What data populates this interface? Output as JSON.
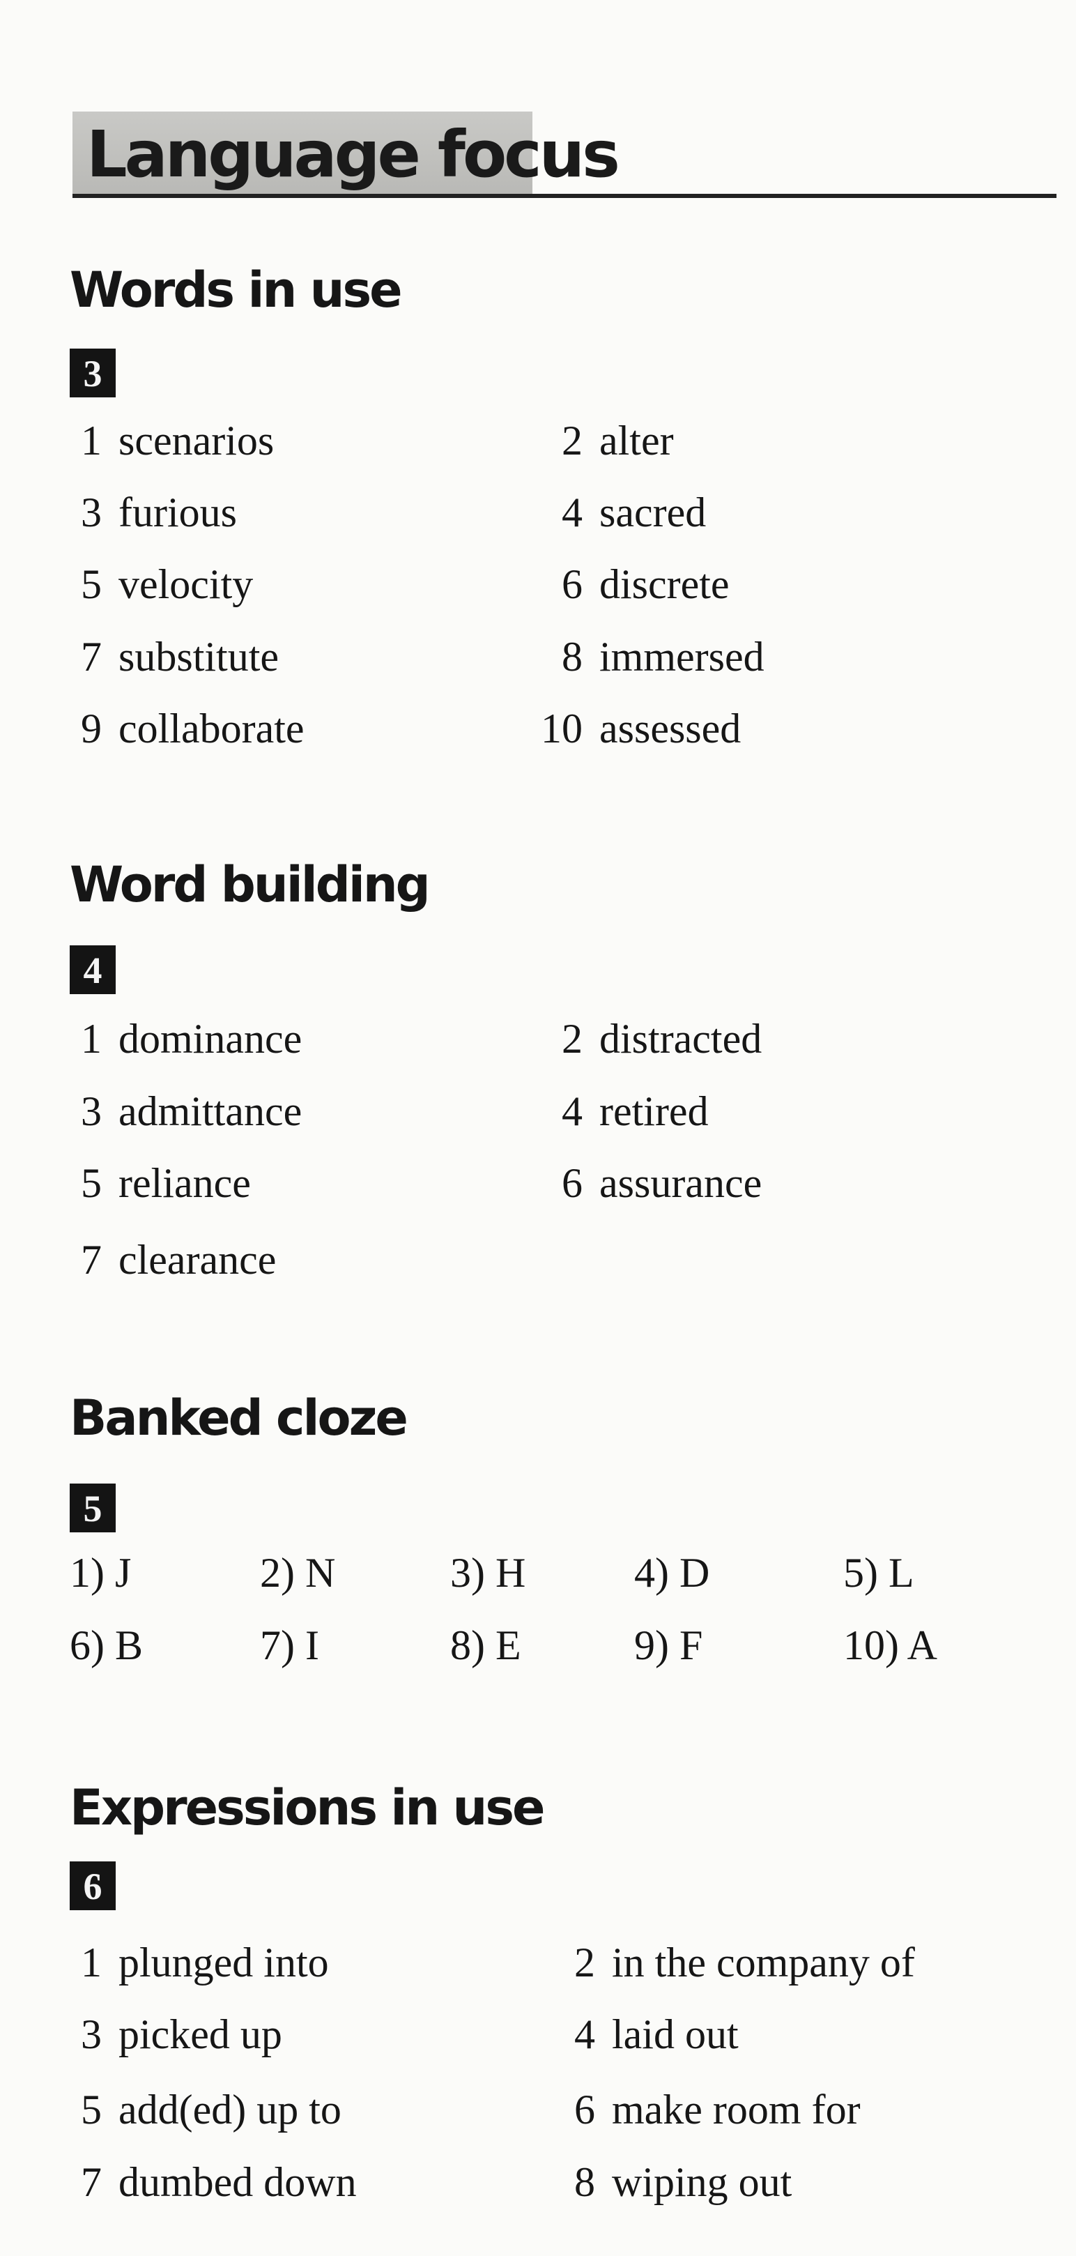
{
  "header": {
    "title": "Language focus"
  },
  "sections": [
    {
      "title": "Words in use",
      "exercise": "3",
      "items": [
        {
          "n": "1",
          "text": "scenarios"
        },
        {
          "n": "2",
          "text": "alter"
        },
        {
          "n": "3",
          "text": "furious"
        },
        {
          "n": "4",
          "text": "sacred"
        },
        {
          "n": "5",
          "text": "velocity"
        },
        {
          "n": "6",
          "text": "discrete"
        },
        {
          "n": "7",
          "text": "substitute"
        },
        {
          "n": "8",
          "text": "immersed"
        },
        {
          "n": "9",
          "text": "collaborate"
        },
        {
          "n": "10",
          "text": "assessed"
        }
      ]
    },
    {
      "title": "Word building",
      "exercise": "4",
      "items": [
        {
          "n": "1",
          "text": "dominance"
        },
        {
          "n": "2",
          "text": "distracted"
        },
        {
          "n": "3",
          "text": "admittance"
        },
        {
          "n": "4",
          "text": "retired"
        },
        {
          "n": "5",
          "text": "reliance"
        },
        {
          "n": "6",
          "text": "assurance"
        },
        {
          "n": "7",
          "text": "clearance"
        }
      ]
    },
    {
      "title": "Banked cloze",
      "exercise": "5",
      "items": [
        "1) J",
        "2) N",
        "3) H",
        "4) D",
        "5) L",
        "6) B",
        "7) I",
        "8) E",
        "9) F",
        "10) A"
      ]
    },
    {
      "title": "Expressions in use",
      "exercise": "6",
      "items": [
        {
          "n": "1",
          "text": "plunged into"
        },
        {
          "n": "2",
          "text": "in the company of"
        },
        {
          "n": "3",
          "text": "picked up"
        },
        {
          "n": "4",
          "text": "laid out"
        },
        {
          "n": "5",
          "text": "add(ed) up to"
        },
        {
          "n": "6",
          "text": "make room for"
        },
        {
          "n": "7",
          "text": "dumbed down"
        },
        {
          "n": "8",
          "text": "wiping out"
        }
      ]
    }
  ]
}
